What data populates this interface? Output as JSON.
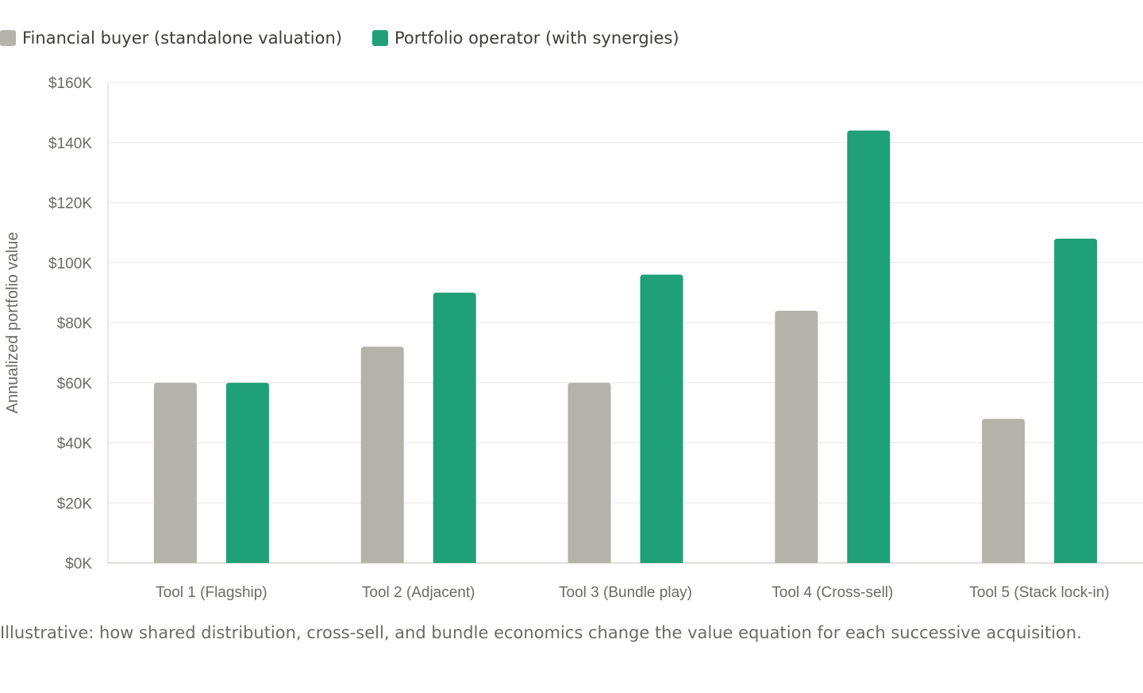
{
  "legend": {
    "items": [
      {
        "label": "Financial buyer (standalone valuation)",
        "color": "#b5b2a9"
      },
      {
        "label": "Portfolio operator (with synergies)",
        "color": "#1fa077"
      }
    ]
  },
  "caption": "Illustrative: how shared distribution, cross-sell, and bundle economics change the value equation for each successive acquisition.",
  "chart_data": {
    "type": "bar",
    "title": "",
    "xlabel": "",
    "ylabel": "Annualized portfolio value",
    "categories": [
      "Tool 1 (Flagship)",
      "Tool 2 (Adjacent)",
      "Tool 3 (Bundle play)",
      "Tool 4 (Cross-sell)",
      "Tool 5 (Stack lock-in)"
    ],
    "series": [
      {
        "name": "Financial buyer (standalone valuation)",
        "color": "#b5b2a9",
        "values": [
          60000,
          72000,
          60000,
          84000,
          48000
        ]
      },
      {
        "name": "Portfolio operator (with synergies)",
        "color": "#1fa077",
        "values": [
          60000,
          90000,
          96000,
          144000,
          108000
        ]
      }
    ],
    "ylim": [
      0,
      160000
    ],
    "yticks": [
      0,
      20000,
      40000,
      60000,
      80000,
      100000,
      120000,
      140000,
      160000
    ],
    "ytick_labels": [
      "$0K",
      "$20K",
      "$40K",
      "$60K",
      "$80K",
      "$100K",
      "$120K",
      "$140K",
      "$160K"
    ],
    "grid": true,
    "legend_position": "top-left"
  }
}
